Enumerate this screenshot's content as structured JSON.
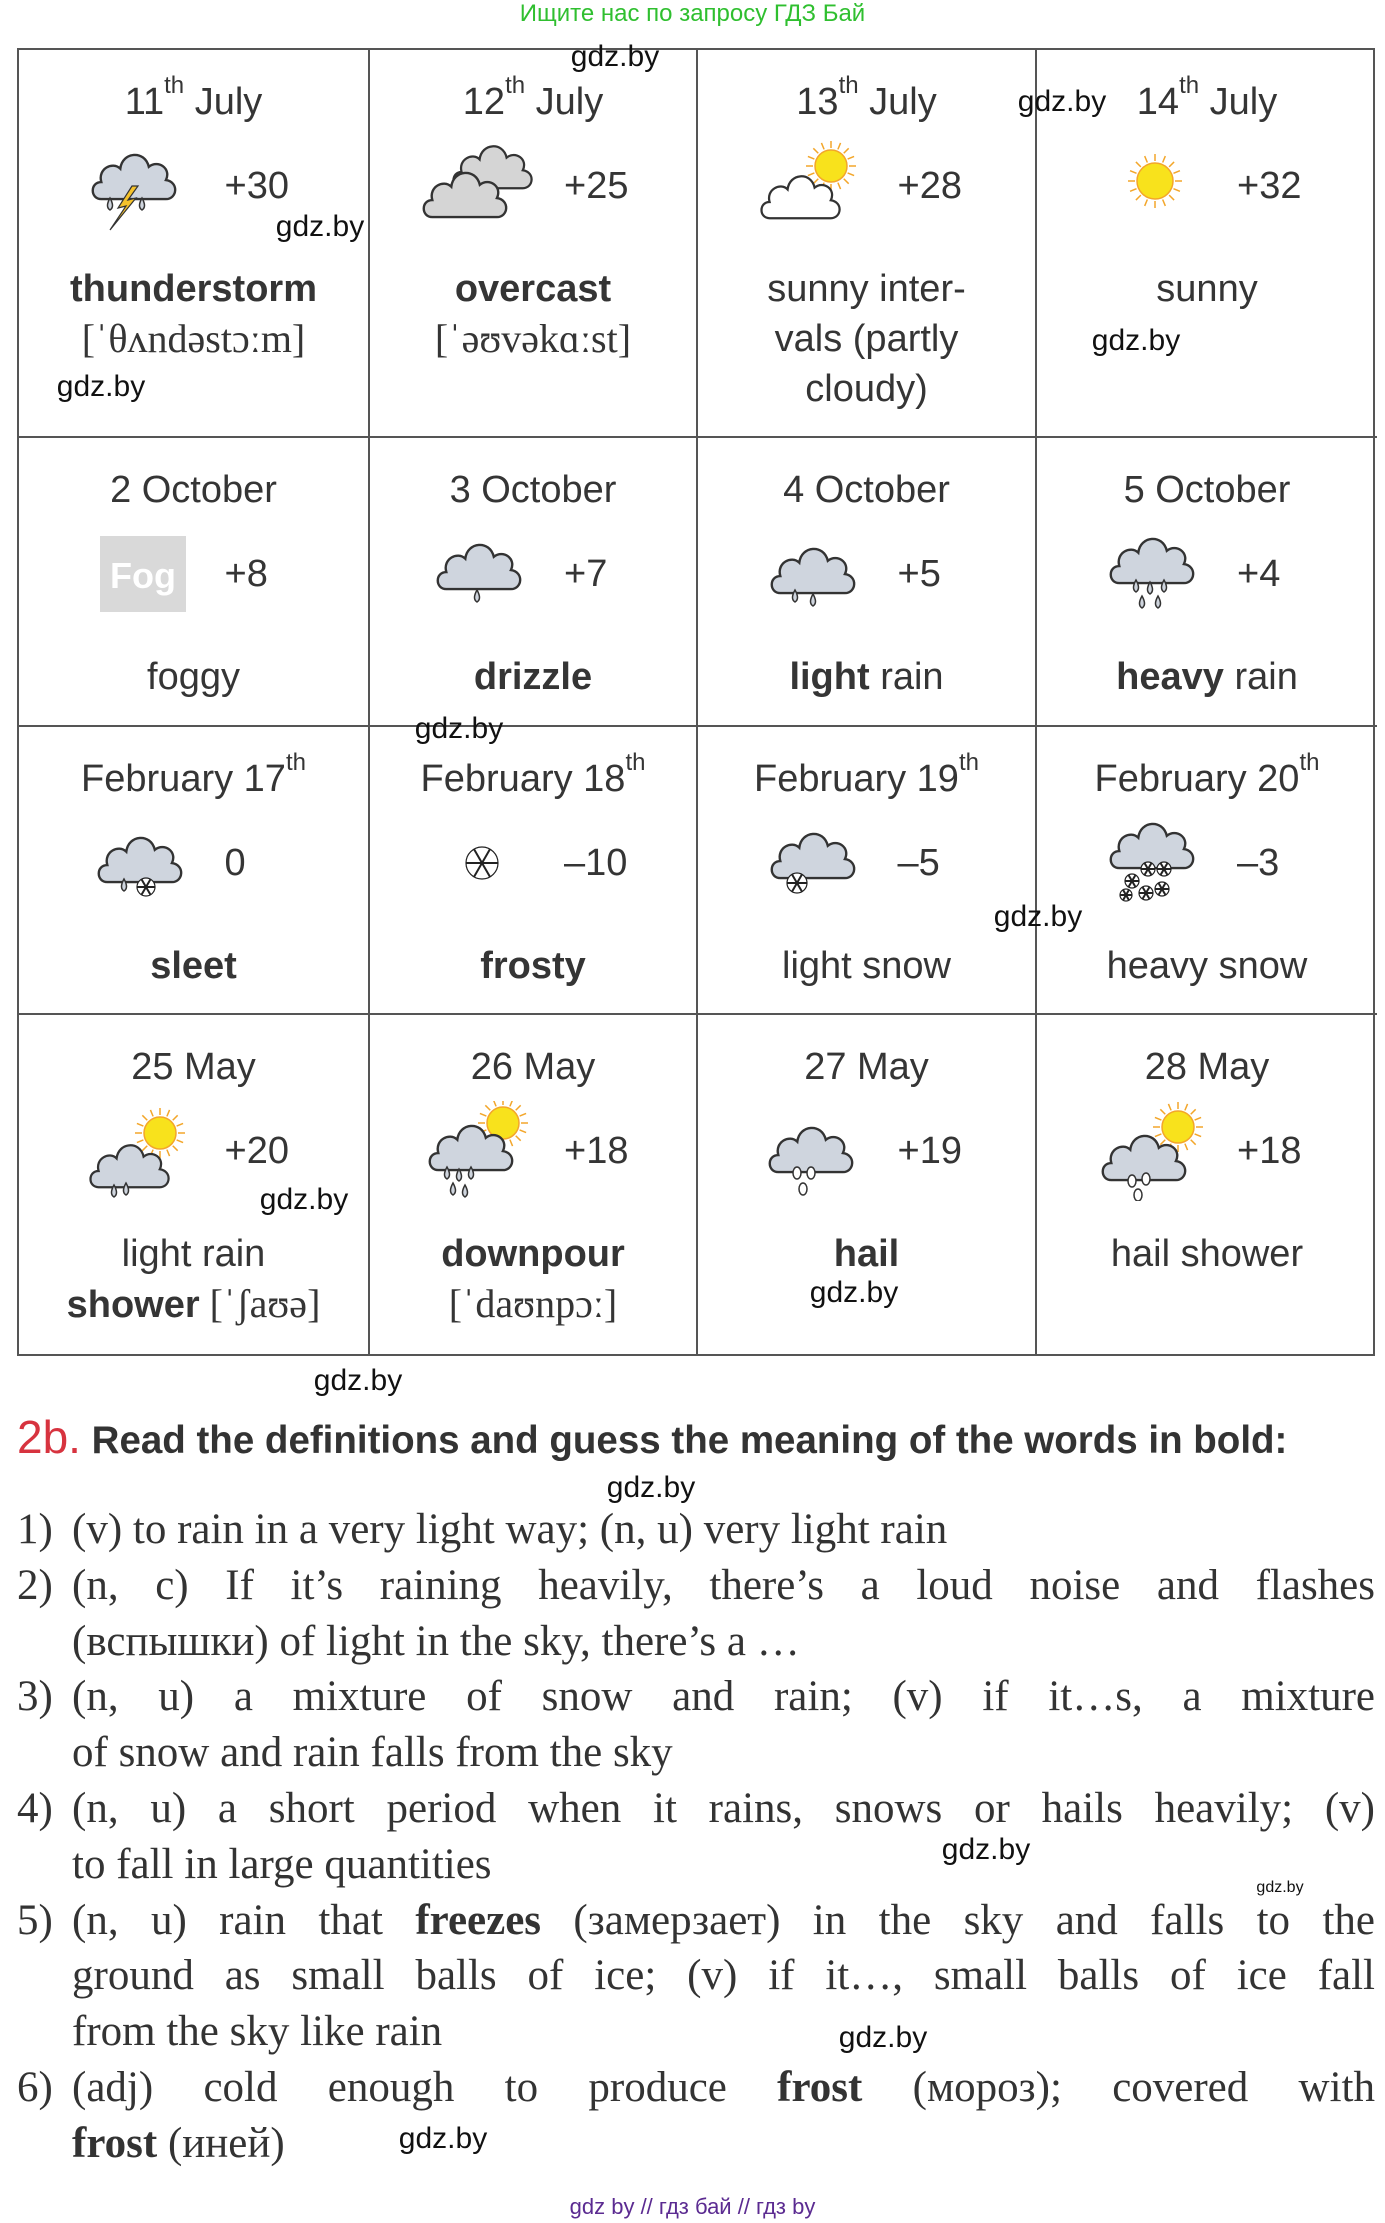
{
  "top_note": "Ищите нас по запросу ГДЗ Бай",
  "colors": {
    "accent_red": "#d7333f",
    "top_note_green": "#2fbf2f",
    "footer_purple": "#5b2b91",
    "sun_yellow": "#f8e21c",
    "cloud_gray": "#cfd5de"
  },
  "table": {
    "rows": [
      [
        {
          "date": {
            "pre": "11",
            "sup": "th",
            "post": " July"
          },
          "icon": "thunderstorm-icon",
          "temp": "+30",
          "lines": [
            [
              {
                "t": "thunderstorm",
                "b": true
              }
            ],
            [
              {
                "t": "[ˈθʌndəstɔːm]",
                "serif": true
              }
            ]
          ]
        },
        {
          "date": {
            "pre": "12",
            "sup": "th",
            "post": " July"
          },
          "icon": "overcast-icon",
          "temp": "+25",
          "lines": [
            [
              {
                "t": "overcast",
                "b": true
              }
            ],
            [
              {
                "t": "[ˈəʊvəkɑːst]",
                "serif": true
              }
            ]
          ]
        },
        {
          "date": {
            "pre": "13",
            "sup": "th",
            "post": " July"
          },
          "icon": "partly-cloudy-icon",
          "temp": "+28",
          "lines": [
            [
              {
                "t": "sunny inter-"
              }
            ],
            [
              {
                "t": "vals (partly"
              }
            ],
            [
              {
                "t": "cloudy)"
              }
            ]
          ]
        },
        {
          "date": {
            "pre": "14",
            "sup": "th",
            "post": " July"
          },
          "icon": "sun-icon",
          "temp": "+32",
          "lines": [
            [
              {
                "t": "sunny"
              }
            ]
          ]
        }
      ],
      [
        {
          "date": {
            "pre": "2 October"
          },
          "icon": "fog-icon",
          "icon_text": "Fog",
          "temp": "+8",
          "lines": [
            [
              {
                "t": "foggy"
              }
            ]
          ]
        },
        {
          "date": {
            "pre": "3 October"
          },
          "icon": "drizzle-icon",
          "temp": "+7",
          "lines": [
            [
              {
                "t": "drizzle",
                "b": true
              }
            ]
          ]
        },
        {
          "date": {
            "pre": "4 October"
          },
          "icon": "light-rain-icon",
          "temp": "+5",
          "lines": [
            [
              {
                "t": "light",
                "b": true
              },
              {
                "t": " rain"
              }
            ]
          ]
        },
        {
          "date": {
            "pre": "5 October"
          },
          "icon": "heavy-rain-icon",
          "temp": "+4",
          "lines": [
            [
              {
                "t": "heavy",
                "b": true
              },
              {
                "t": " rain"
              }
            ]
          ]
        }
      ],
      [
        {
          "date": {
            "pre": "February 17",
            "sup": "th"
          },
          "icon": "sleet-icon",
          "temp": "0",
          "lines": [
            [
              {
                "t": "sleet",
                "b": true
              }
            ]
          ]
        },
        {
          "date": {
            "pre": "February 18",
            "sup": "th"
          },
          "icon": "snowflake-icon",
          "temp": "–10",
          "lines": [
            [
              {
                "t": "frosty",
                "b": true
              }
            ]
          ]
        },
        {
          "date": {
            "pre": "February 19",
            "sup": "th"
          },
          "icon": "light-snow-icon",
          "temp": "–5",
          "lines": [
            [
              {
                "t": "light snow"
              }
            ]
          ]
        },
        {
          "date": {
            "pre": "February 20",
            "sup": "th"
          },
          "icon": "heavy-snow-icon",
          "temp": "–3",
          "lines": [
            [
              {
                "t": "heavy snow"
              }
            ]
          ]
        }
      ],
      [
        {
          "date": {
            "pre": "25 May"
          },
          "icon": "sun-shower-icon",
          "temp": "+20",
          "lines": [
            [
              {
                "t": "light rain"
              }
            ],
            [
              {
                "t": "shower",
                "b": true
              },
              {
                "t": " [ˈʃaʊə]",
                "serif": true
              }
            ]
          ]
        },
        {
          "date": {
            "pre": "26 May"
          },
          "icon": "downpour-icon",
          "temp": "+18",
          "lines": [
            [
              {
                "t": "downpour",
                "b": true
              }
            ],
            [
              {
                "t": "[ˈdaʊnpɔː]",
                "serif": true
              }
            ]
          ]
        },
        {
          "date": {
            "pre": "27 May"
          },
          "icon": "hail-icon",
          "temp": "+19",
          "lines": [
            [
              {
                "t": "hail",
                "b": true
              }
            ]
          ]
        },
        {
          "date": {
            "pre": "28 May"
          },
          "icon": "hail-shower-icon",
          "temp": "+18",
          "lines": [
            [
              {
                "t": "hail shower"
              }
            ]
          ]
        }
      ]
    ]
  },
  "watermarks": [
    "gdz.by",
    "gdz.by",
    "gdz.by",
    "gdz.by",
    "gdz.by",
    "gdz.by",
    "gdz.by",
    "gdz.by",
    "gdz.by",
    "gdz.by",
    "gdz.by",
    "gdz.by",
    "gdz.by",
    "gdz.by",
    "gdz.by"
  ],
  "exercise": {
    "number": "2b.",
    "instruction": " Read the definitions and guess the meaning of the words in bold:",
    "definitions": [
      {
        "num": "1)",
        "lines": [
          [
            {
              "t": "(v) to rain in a very light way; (n, u) very light rain"
            }
          ]
        ]
      },
      {
        "num": "2)",
        "lines": [
          [
            {
              "t": "(n, c) If it’s raining heavily, there’s a loud noise and flashes"
            }
          ],
          [
            {
              "t": "(вспышки) of light in the sky, there’s a …"
            }
          ]
        ]
      },
      {
        "num": "3)",
        "lines": [
          [
            {
              "t": "(n, u) a mixture of snow and rain; (v) if it…s, a mixture"
            }
          ],
          [
            {
              "t": "of snow and rain falls from the sky"
            }
          ]
        ]
      },
      {
        "num": "4)",
        "lines": [
          [
            {
              "t": "(n, u) a short period when it rains, snows or hails heavily; (v)"
            }
          ],
          [
            {
              "t": "to fall in large quantities"
            }
          ]
        ]
      },
      {
        "num": "5)",
        "lines": [
          [
            {
              "t": "(n, u) rain that "
            },
            {
              "t": "freezes",
              "b": true
            },
            {
              "t": " (замерзает) in the sky and falls to the"
            }
          ],
          [
            {
              "t": "ground as small balls of ice; (v) if it…, small balls of ice fall"
            }
          ],
          [
            {
              "t": "from the sky like rain"
            }
          ]
        ]
      },
      {
        "num": "6)",
        "lines": [
          [
            {
              "t": "(adj) cold enough to produce "
            },
            {
              "t": "frost",
              "b": true
            },
            {
              "t": " (мороз); covered with"
            }
          ],
          [
            {
              "t": "frost",
              "b": true
            },
            {
              "t": " (иней)"
            }
          ]
        ]
      }
    ]
  },
  "footer": "gdz by  //  гдз бай  //  гдз by"
}
